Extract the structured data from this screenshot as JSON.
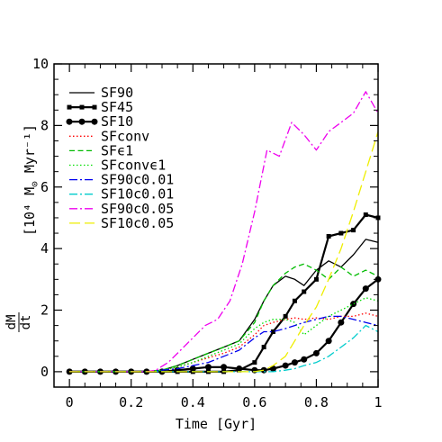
{
  "chart_data": {
    "type": "line",
    "xlabel": "Time [Gyr]",
    "ylabel_num": "dM",
    "ylabel_den": "dt",
    "ylabel_units": "[10⁴ M",
    "ylabel_units_sun": "⊙",
    "ylabel_units_tail": " Myr⁻¹]",
    "xlim": [
      -0.05,
      1.0
    ],
    "ylim": [
      -0.5,
      10
    ],
    "xticks": [
      0,
      0.2,
      0.4,
      0.6,
      0.8,
      1
    ],
    "xtick_labels": [
      "0",
      "0.2",
      "0.4",
      "0.6",
      "0.8",
      "1"
    ],
    "yticks": [
      0,
      2,
      4,
      6,
      8,
      10
    ],
    "ytick_labels": [
      "0",
      "2",
      "4",
      "6",
      "8",
      "10"
    ],
    "grid": false,
    "legend_position": "top-left",
    "series": [
      {
        "name": "SF90",
        "color": "#000000",
        "dash": "",
        "width": 1.3,
        "marker": "none",
        "x": [
          0,
          0.05,
          0.1,
          0.15,
          0.2,
          0.25,
          0.3,
          0.35,
          0.4,
          0.45,
          0.5,
          0.55,
          0.6,
          0.63,
          0.66,
          0.7,
          0.73,
          0.76,
          0.8,
          0.84,
          0.88,
          0.92,
          0.96,
          1.0
        ],
        "y": [
          0,
          0,
          0,
          0,
          0,
          0,
          0.05,
          0.2,
          0.4,
          0.6,
          0.8,
          1.0,
          1.7,
          2.3,
          2.8,
          3.1,
          3.0,
          2.8,
          3.3,
          3.6,
          3.4,
          3.8,
          4.3,
          4.2
        ]
      },
      {
        "name": "SF45",
        "color": "#000000",
        "dash": "",
        "width": 2.2,
        "marker": "square",
        "x": [
          0,
          0.05,
          0.1,
          0.15,
          0.2,
          0.25,
          0.3,
          0.35,
          0.4,
          0.45,
          0.5,
          0.55,
          0.6,
          0.63,
          0.66,
          0.7,
          0.73,
          0.76,
          0.8,
          0.84,
          0.88,
          0.92,
          0.96,
          1.0
        ],
        "y": [
          0,
          0,
          0,
          0,
          0,
          0,
          0,
          0,
          0,
          0,
          0,
          0.05,
          0.3,
          0.8,
          1.3,
          1.8,
          2.3,
          2.6,
          3.0,
          4.4,
          4.5,
          4.6,
          5.1,
          5.0
        ]
      },
      {
        "name": "SF10",
        "color": "#000000",
        "dash": "",
        "width": 2.2,
        "marker": "circle",
        "x": [
          0,
          0.05,
          0.1,
          0.15,
          0.2,
          0.25,
          0.3,
          0.35,
          0.4,
          0.45,
          0.5,
          0.55,
          0.6,
          0.63,
          0.66,
          0.7,
          0.73,
          0.76,
          0.8,
          0.84,
          0.88,
          0.92,
          0.96,
          1.0
        ],
        "y": [
          0,
          0,
          0,
          0,
          0,
          0,
          0,
          0.05,
          0.1,
          0.15,
          0.15,
          0.1,
          0.05,
          0.05,
          0.1,
          0.2,
          0.3,
          0.4,
          0.6,
          1.0,
          1.6,
          2.2,
          2.7,
          3.0
        ]
      },
      {
        "name": "SFconv",
        "color": "#ff0000",
        "dash": "1.5,2.5",
        "width": 1.3,
        "marker": "none",
        "x": [
          0,
          0.05,
          0.1,
          0.15,
          0.2,
          0.25,
          0.3,
          0.35,
          0.4,
          0.45,
          0.5,
          0.55,
          0.6,
          0.63,
          0.66,
          0.7,
          0.73,
          0.76,
          0.8,
          0.84,
          0.88,
          0.92,
          0.96,
          1.0
        ],
        "y": [
          0,
          0,
          0,
          0,
          0,
          0,
          0.05,
          0.15,
          0.3,
          0.45,
          0.6,
          0.8,
          1.2,
          1.5,
          1.6,
          1.7,
          1.75,
          1.7,
          1.75,
          1.7,
          1.8,
          1.8,
          1.9,
          1.8
        ]
      },
      {
        "name": "SFϵ1",
        "color": "#00bb00",
        "dash": "6,3.5",
        "width": 1.3,
        "marker": "none",
        "x": [
          0,
          0.05,
          0.1,
          0.15,
          0.2,
          0.25,
          0.3,
          0.35,
          0.4,
          0.45,
          0.5,
          0.55,
          0.6,
          0.63,
          0.66,
          0.7,
          0.73,
          0.76,
          0.8,
          0.84,
          0.88,
          0.92,
          0.96,
          1.0
        ],
        "y": [
          0,
          0,
          0,
          0,
          0,
          0,
          0.05,
          0.2,
          0.4,
          0.6,
          0.8,
          1.0,
          1.6,
          2.3,
          2.8,
          3.2,
          3.4,
          3.5,
          3.3,
          3.0,
          3.4,
          3.1,
          3.3,
          3.1
        ]
      },
      {
        "name": "SFconvϵ1",
        "color": "#00dd00",
        "dash": "1.5,2.5",
        "width": 1.3,
        "marker": "none",
        "x": [
          0,
          0.05,
          0.1,
          0.15,
          0.2,
          0.25,
          0.3,
          0.35,
          0.4,
          0.45,
          0.5,
          0.55,
          0.6,
          0.63,
          0.66,
          0.7,
          0.73,
          0.76,
          0.8,
          0.84,
          0.88,
          0.92,
          0.96,
          1.0
        ],
        "y": [
          0,
          0,
          0,
          0,
          0,
          0,
          0.05,
          0.15,
          0.3,
          0.5,
          0.7,
          0.9,
          1.4,
          1.6,
          1.7,
          1.7,
          1.6,
          1.2,
          1.5,
          1.8,
          2.0,
          2.2,
          2.4,
          2.3
        ]
      },
      {
        "name": "SF90c0.01",
        "color": "#0000ee",
        "dash": "9,3,2,3",
        "width": 1.3,
        "marker": "none",
        "x": [
          0,
          0.05,
          0.1,
          0.15,
          0.2,
          0.25,
          0.3,
          0.35,
          0.4,
          0.45,
          0.5,
          0.55,
          0.6,
          0.63,
          0.66,
          0.7,
          0.73,
          0.76,
          0.8,
          0.84,
          0.88,
          0.92,
          0.96,
          1.0
        ],
        "y": [
          0,
          0,
          0,
          0,
          0,
          0,
          0.05,
          0.1,
          0.2,
          0.3,
          0.5,
          0.7,
          1.1,
          1.3,
          1.3,
          1.4,
          1.5,
          1.6,
          1.7,
          1.8,
          1.8,
          1.7,
          1.6,
          1.5
        ]
      },
      {
        "name": "SF10c0.01",
        "color": "#00cccc",
        "dash": "9,3,2,3",
        "width": 1.3,
        "marker": "none",
        "x": [
          0,
          0.05,
          0.1,
          0.15,
          0.2,
          0.25,
          0.3,
          0.35,
          0.4,
          0.45,
          0.5,
          0.55,
          0.6,
          0.63,
          0.66,
          0.7,
          0.73,
          0.76,
          0.8,
          0.84,
          0.88,
          0.92,
          0.96,
          1.0
        ],
        "y": [
          0,
          0,
          0,
          0,
          0,
          0,
          0,
          0,
          0,
          0,
          0,
          0,
          0,
          0,
          0,
          0.05,
          0.1,
          0.2,
          0.3,
          0.5,
          0.8,
          1.1,
          1.5,
          1.3
        ]
      },
      {
        "name": "SF90c0.05",
        "color": "#ee00ee",
        "dash": "9,3,2,3",
        "width": 1.3,
        "marker": "none",
        "x": [
          0,
          0.05,
          0.1,
          0.15,
          0.2,
          0.25,
          0.28,
          0.32,
          0.36,
          0.4,
          0.44,
          0.48,
          0.52,
          0.56,
          0.6,
          0.64,
          0.68,
          0.72,
          0.76,
          0.8,
          0.84,
          0.88,
          0.92,
          0.96,
          1.0
        ],
        "y": [
          0,
          0,
          0,
          0,
          0,
          0,
          0.05,
          0.3,
          0.7,
          1.1,
          1.5,
          1.7,
          2.3,
          3.5,
          5.2,
          7.2,
          7.0,
          8.1,
          7.7,
          7.2,
          7.8,
          8.1,
          8.4,
          9.1,
          8.4
        ]
      },
      {
        "name": "SF10c0.05",
        "color": "#eeee00",
        "dash": "12,5",
        "width": 1.3,
        "marker": "none",
        "x": [
          0,
          0.05,
          0.1,
          0.15,
          0.2,
          0.25,
          0.3,
          0.35,
          0.4,
          0.45,
          0.5,
          0.55,
          0.6,
          0.63,
          0.66,
          0.7,
          0.73,
          0.76,
          0.8,
          0.84,
          0.88,
          0.92,
          0.96,
          1.0
        ],
        "y": [
          0,
          0,
          0,
          0,
          0,
          0,
          0,
          0,
          0,
          0,
          0,
          0,
          0,
          0.05,
          0.2,
          0.5,
          1.0,
          1.5,
          2.1,
          3.0,
          4.0,
          5.2,
          6.5,
          7.8
        ]
      }
    ]
  }
}
